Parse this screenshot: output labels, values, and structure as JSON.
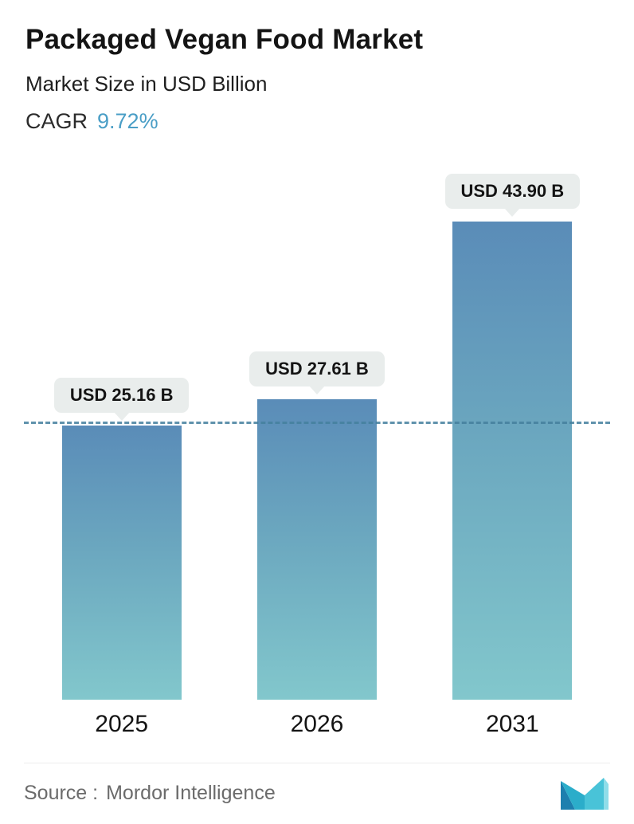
{
  "header": {
    "title": "Packaged Vegan Food Market",
    "subtitle": "Market Size in USD Billion",
    "cagr_label": "CAGR",
    "cagr_value": "9.72%"
  },
  "chart_data": {
    "type": "bar",
    "categories": [
      "2025",
      "2026",
      "2031"
    ],
    "values": [
      25.16,
      27.61,
      43.9
    ],
    "value_labels": [
      "USD 25.16 B",
      "USD 27.61 B",
      "USD 43.90 B"
    ],
    "title": "Packaged Vegan Food Market",
    "xlabel": "",
    "ylabel": "Market Size in USD Billion",
    "ylim": [
      0,
      48
    ],
    "reference_line": 25.16,
    "legend": "none",
    "grid": "off",
    "bar_gradient_top": "#5a8cb8",
    "bar_gradient_bottom": "#82c7cc",
    "dashed_line_color": "#45809e",
    "label_pill_color": "#e9edec"
  },
  "footer": {
    "source_label": "Source :",
    "source_value": "Mordor Intelligence",
    "logo": "mordor-intelligence-logo"
  }
}
